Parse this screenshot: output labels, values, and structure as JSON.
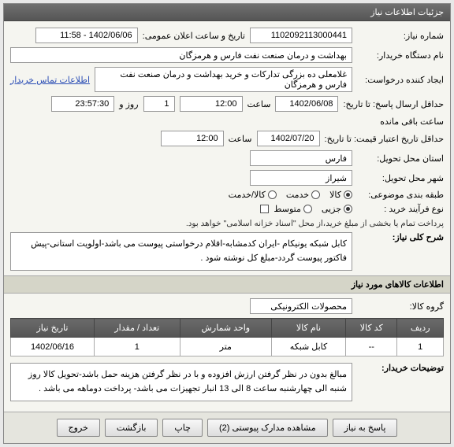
{
  "panel_title": "جزئیات اطلاعات نیاز",
  "labels": {
    "request_no": "شماره نیاز:",
    "announce_time": "تاریخ و ساعت اعلان عمومی:",
    "org_name": "نام دستگاه خریدار:",
    "creator": "ایجاد کننده درخواست:",
    "contact": "اطلاعات تماس خریدار",
    "deadline": "حداقل ارسال پاسخ: تا تاریخ:",
    "hour": "ساعت",
    "day_and": "روز و",
    "remaining": "ساعت باقی مانده",
    "validity": "حداقل تاریخ اعتبار قیمت: تا تاریخ:",
    "province": "استان محل تحویل:",
    "city": "شهر محل تحویل:",
    "subject_cat": "طبقه بندی موضوعی:",
    "purchase_type": "نوع فرآیند خرید :",
    "pay_note": "پرداخت تمام یا بخشی از مبلغ خرید،از محل \"اسناد خزانه اسلامی\" خواهد بود.",
    "desc_title": "شرح کلی نیاز:",
    "section2": "اطلاعات کالاهای مورد نیاز",
    "goods_group": "گروه کالا:",
    "buyer_notes": "توضیحات خریدار:"
  },
  "values": {
    "request_no": "1102092113000441",
    "announce_time": "1402/06/06 - 11:58",
    "org_name": "بهداشت و درمان صنعت نفت فارس و هرمزگان",
    "creator": "غلامعلی ده بزرگی تدارکات و خرید بهداشت و درمان صنعت نفت فارس و هرمزگان",
    "deadline_date": "1402/06/08",
    "deadline_hour": "12:00",
    "deadline_days": "1",
    "deadline_time": "23:57:30",
    "validity_date": "1402/07/20",
    "validity_hour": "12:00",
    "province": "فارس",
    "city": "شیراز",
    "desc": "کابل شبکه یونیکام -ایران کدمشابه-اقلام درخواستی پیوست می باشد-اولویت استانی-پیش فاکتور پیوست گردد-مبلغ کل نوشته شود .",
    "goods_group": "محصولات الکترونیکی",
    "buyer_notes": "مبالغ بدون در نظر گرفتن ارزش افزوده و با در نظر گرفتن هزینه حمل باشد-تحویل کالا روز شنبه الی چهارشنبه ساعت 8 الی 13 انبار تجهیزات می باشد- پرداخت دوماهه می باشد ."
  },
  "subject_options": [
    {
      "label": "کالا",
      "checked": true
    },
    {
      "label": "خدمت",
      "checked": false
    },
    {
      "label": "کالا/خدمت",
      "checked": false
    }
  ],
  "purchase_options": [
    {
      "label": "جزیی",
      "checked": true
    },
    {
      "label": "متوسط",
      "checked": false
    }
  ],
  "table": {
    "headers": [
      "ردیف",
      "کد کالا",
      "نام کالا",
      "واحد شمارش",
      "تعداد / مقدار",
      "تاریخ نیاز"
    ],
    "rows": [
      [
        "1",
        "--",
        "کابل شبکه",
        "متر",
        "1",
        "1402/06/16"
      ]
    ]
  },
  "buttons": {
    "reply": "پاسخ به نیاز",
    "attachments": "مشاهده مدارک پیوستی (2)",
    "print": "چاپ",
    "back": "بازگشت",
    "exit": "خروج"
  }
}
